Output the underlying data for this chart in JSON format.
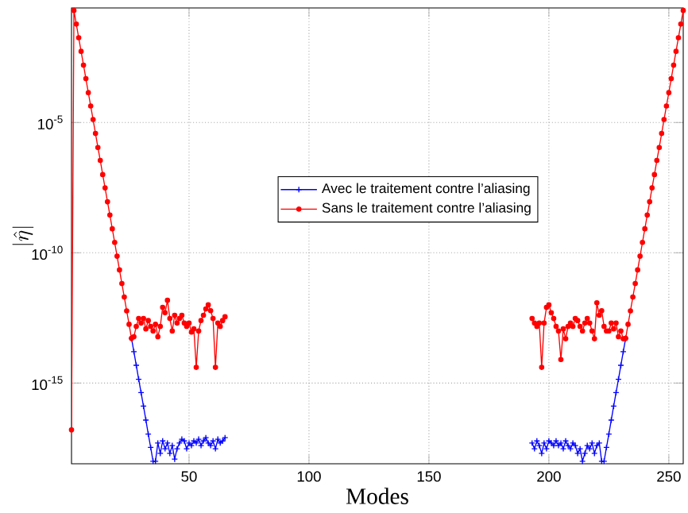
{
  "chart_data": {
    "type": "line",
    "xlabel": "Modes",
    "ylabel": "|\\hat{\\eta}|",
    "log": "y",
    "grid": true,
    "legend": "center",
    "xlim": [
      1,
      256
    ],
    "ylim": [
      8e-19,
      0.25
    ],
    "xticks": [
      50,
      100,
      150,
      200,
      250
    ],
    "yticks": [
      {
        "value": 1e-15,
        "label": "10$^{-15}$"
      },
      {
        "value": 1e-10,
        "label": "10$^{-10}$"
      },
      {
        "value": 1e-05,
        "label": "10$^{-5}$"
      }
    ],
    "series": [
      {
        "name": "Avec le traitement contre l’aliasing",
        "color": "#0000ff",
        "marker": "cross",
        "x": [
          26,
          27,
          28,
          29,
          30,
          31,
          32,
          33,
          34,
          35,
          36,
          37,
          38,
          39,
          40,
          41,
          42,
          43,
          44,
          45,
          46,
          47,
          48,
          49,
          50,
          51,
          52,
          53,
          54,
          55,
          56,
          57,
          58,
          59,
          60,
          61,
          62,
          63,
          64,
          65,
          129,
          193,
          194,
          195,
          196,
          197,
          198,
          199,
          200,
          201,
          202,
          203,
          204,
          205,
          206,
          207,
          208,
          209,
          210,
          211,
          212,
          213,
          214,
          215,
          216,
          217,
          218,
          219,
          220,
          221,
          222,
          223,
          224,
          225,
          226,
          227,
          228,
          229,
          230,
          231,
          232
        ],
        "values": [
          5.2e-14,
          1.6e-14,
          4.8e-15,
          1.4e-15,
          4.3e-16,
          1.3e-16,
          3.8e-17,
          1.1e-17,
          3.4e-18,
          1e-18,
          1e-18,
          5e-18,
          2e-18,
          6e-18,
          3e-18,
          5e-18,
          2e-18,
          4e-18,
          1.2e-18,
          3e-18,
          5e-18,
          7e-18,
          6e-18,
          3e-18,
          5e-18,
          4e-18,
          6e-18,
          5e-18,
          7e-18,
          4e-18,
          6e-18,
          8e-18,
          5e-18,
          4e-18,
          6e-18,
          3e-18,
          7e-18,
          5e-18,
          6e-18,
          8e-18,
          null,
          5e-18,
          3e-18,
          6e-18,
          4e-18,
          2e-18,
          5e-18,
          3e-18,
          6e-18,
          5e-18,
          4e-18,
          6e-18,
          4e-18,
          5e-18,
          3e-18,
          6e-18,
          4e-18,
          3e-18,
          5e-18,
          4e-18,
          2e-18,
          3e-18,
          1e-18,
          2e-18,
          4e-18,
          3e-18,
          5e-18,
          2e-18,
          4e-18,
          5e-18,
          1e-18,
          1e-18,
          3.4e-18,
          1.1e-17,
          3.8e-17,
          1.3e-16,
          4.3e-16,
          1.4e-15,
          4.8e-15,
          1.6e-14,
          5.2e-14
        ]
      },
      {
        "name": "Sans le traitement contre l’aliasing",
        "color": "#ff0000",
        "marker": "circle",
        "x": [
          1,
          2,
          3,
          4,
          5,
          6,
          7,
          8,
          9,
          10,
          11,
          12,
          13,
          14,
          15,
          16,
          17,
          18,
          19,
          20,
          21,
          22,
          23,
          24,
          25,
          26,
          27,
          28,
          29,
          30,
          31,
          32,
          33,
          34,
          35,
          36,
          37,
          38,
          39,
          40,
          41,
          42,
          43,
          44,
          45,
          46,
          47,
          48,
          49,
          50,
          51,
          52,
          53,
          54,
          55,
          56,
          57,
          58,
          59,
          60,
          61,
          62,
          63,
          64,
          65,
          129,
          193,
          194,
          195,
          196,
          197,
          198,
          199,
          200,
          201,
          202,
          203,
          204,
          205,
          206,
          207,
          208,
          209,
          210,
          211,
          212,
          213,
          214,
          215,
          216,
          217,
          218,
          219,
          220,
          221,
          222,
          223,
          224,
          225,
          226,
          227,
          228,
          229,
          230,
          231,
          232,
          233,
          234,
          235,
          236,
          237,
          238,
          239,
          240,
          241,
          242,
          243,
          244,
          245,
          246,
          247,
          248,
          249,
          250,
          251,
          252,
          253,
          254,
          255,
          256
        ],
        "values": [
          1.6e-17,
          0.2,
          0.06,
          0.018,
          0.0054,
          0.0016,
          0.00048,
          0.00014,
          4.3e-05,
          1.3e-05,
          3.8e-06,
          1.1e-06,
          3.5e-07,
          1e-07,
          3.1e-08,
          9.1e-09,
          2.8e-09,
          8.3e-10,
          2.5e-10,
          7.4e-11,
          2.2e-11,
          6.6e-12,
          2e-12,
          5.9e-13,
          1.8e-13,
          5.2e-14,
          6e-14,
          1.5e-13,
          3e-13,
          2e-13,
          3e-13,
          1.2e-13,
          2.5e-13,
          1.5e-13,
          1e-13,
          1.8e-13,
          6e-14,
          1.5e-13,
          8e-13,
          5e-13,
          1.5e-12,
          3e-13,
          1e-13,
          4e-13,
          2e-13,
          3e-13,
          4e-13,
          2e-13,
          1.5e-13,
          2e-13,
          9e-14,
          1.2e-13,
          4e-15,
          1e-13,
          2.5e-13,
          4e-13,
          7e-13,
          1e-12,
          6e-13,
          3e-13,
          4e-15,
          2e-13,
          1.5e-13,
          2.5e-13,
          3.5e-13,
          null,
          3e-13,
          2e-13,
          1.5e-13,
          2e-13,
          4e-15,
          2e-13,
          8e-13,
          1e-12,
          5e-13,
          3e-13,
          1.5e-13,
          1e-13,
          8e-15,
          1.2e-13,
          5e-14,
          1.5e-13,
          2e-13,
          1.5e-13,
          3e-13,
          2.5e-13,
          1.5e-13,
          1e-13,
          2e-13,
          3e-13,
          2e-13,
          1e-13,
          5e-14,
          1.2e-12,
          4e-13,
          6e-13,
          1.5e-13,
          1e-13,
          1e-13,
          2e-13,
          1.2e-13,
          2e-13,
          6e-14,
          1e-13,
          5e-14,
          5.2e-14,
          1.8e-13,
          5.9e-13,
          2e-12,
          6.6e-12,
          2.2e-11,
          7.4e-11,
          2.5e-10,
          8.3e-10,
          2.8e-09,
          9.1e-09,
          3.1e-08,
          1e-07,
          3.5e-07,
          1.1e-06,
          3.8e-06,
          1.3e-05,
          4.3e-05,
          0.00014,
          0.00048,
          0.0016,
          0.0054,
          0.018,
          0.06,
          0.2
        ]
      }
    ]
  }
}
